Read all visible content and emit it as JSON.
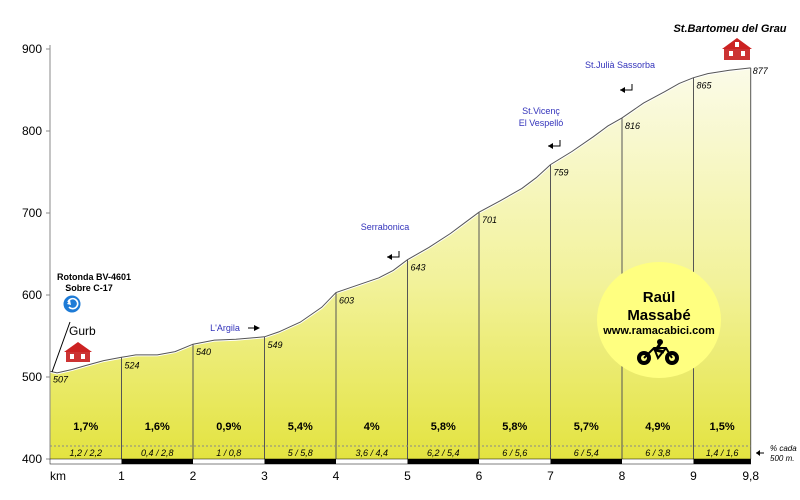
{
  "chart_data": {
    "type": "area",
    "title": "St.Bartomeu del Grau",
    "ylim": [
      400,
      900
    ],
    "yticks": [
      "400",
      "500",
      "600",
      "700",
      "800",
      "900"
    ],
    "xlim": [
      0,
      9.8
    ],
    "xtick_labels": [
      "km",
      "1",
      "2",
      "3",
      "4",
      "5",
      "6",
      "7",
      "8",
      "9",
      "9,8"
    ],
    "segments": [
      {
        "km_start": 0,
        "km_end": 1,
        "elev_start": 507,
        "grade": "1,7%",
        "sub": "1,2  /  2,2"
      },
      {
        "km_start": 1,
        "km_end": 2,
        "elev_start": 524,
        "grade": "1,6%",
        "sub": "0,4  /  2,8"
      },
      {
        "km_start": 2,
        "km_end": 3,
        "elev_start": 540,
        "grade": "0,9%",
        "sub": "1  /  0,8"
      },
      {
        "km_start": 3,
        "km_end": 4,
        "elev_start": 549,
        "grade": "5,4%",
        "sub": "5  /  5,8"
      },
      {
        "km_start": 4,
        "km_end": 5,
        "elev_start": 603,
        "grade": "4%",
        "sub": "3,6  /  4,4"
      },
      {
        "km_start": 5,
        "km_end": 6,
        "elev_start": 643,
        "grade": "5,8%",
        "sub": "6,2  /  5,4"
      },
      {
        "km_start": 6,
        "km_end": 7,
        "elev_start": 701,
        "grade": "5,8%",
        "sub": "6  /  5,6"
      },
      {
        "km_start": 7,
        "km_end": 8,
        "elev_start": 759,
        "grade": "5,7%",
        "sub": "6  /  5,4"
      },
      {
        "km_start": 8,
        "km_end": 9,
        "elev_start": 816,
        "grade": "4,9%",
        "sub": "6  /  3,8"
      },
      {
        "km_start": 9,
        "km_end": 9.8,
        "elev_start": 865,
        "grade": "1,5%",
        "sub": "1,4  /  1,6"
      }
    ],
    "final_elevation": 877,
    "profile": [
      [
        0,
        507
      ],
      [
        0.1,
        505
      ],
      [
        0.3,
        509
      ],
      [
        0.5,
        514
      ],
      [
        0.75,
        520
      ],
      [
        1,
        524
      ],
      [
        1.2,
        527
      ],
      [
        1.5,
        527
      ],
      [
        1.75,
        531
      ],
      [
        2,
        540
      ],
      [
        2.3,
        545
      ],
      [
        2.6,
        546
      ],
      [
        3,
        549
      ],
      [
        3.2,
        555
      ],
      [
        3.5,
        567
      ],
      [
        3.8,
        585
      ],
      [
        4,
        603
      ],
      [
        4.3,
        612
      ],
      [
        4.6,
        621
      ],
      [
        4.8,
        630
      ],
      [
        5,
        643
      ],
      [
        5.3,
        658
      ],
      [
        5.6,
        675
      ],
      [
        5.8,
        688
      ],
      [
        6,
        701
      ],
      [
        6.3,
        715
      ],
      [
        6.6,
        730
      ],
      [
        6.8,
        743
      ],
      [
        7,
        759
      ],
      [
        7.3,
        775
      ],
      [
        7.6,
        793
      ],
      [
        7.8,
        806
      ],
      [
        8,
        816
      ],
      [
        8.3,
        834
      ],
      [
        8.6,
        848
      ],
      [
        8.8,
        858
      ],
      [
        9,
        865
      ],
      [
        9.2,
        870
      ],
      [
        9.5,
        874
      ],
      [
        9.8,
        877
      ]
    ]
  },
  "places": {
    "top_right": "St.Bartomeu del Grau",
    "sant_julia": "St.Julià  Sassorba",
    "sant_vicenc_1": "St.Vicenç",
    "sant_vicenc_2": "El Vespelló",
    "serrabonica": "Serrabonica",
    "largila": "L'Argila",
    "rotonda_1": "Rotonda BV-4601",
    "rotonda_2": "Sobre C-17",
    "gurb": "Gurb"
  },
  "credit": {
    "name1": "Raül",
    "name2": "Massabé",
    "url": "www.ramacabici.com"
  },
  "note": {
    "line1": "% cada",
    "line2": "500 m."
  },
  "colors": {
    "fill_top": "#f5f5c8",
    "fill_bottom": "#e6e64a",
    "credit_bg": "#ffff80",
    "place_blue": "#3333bb"
  }
}
